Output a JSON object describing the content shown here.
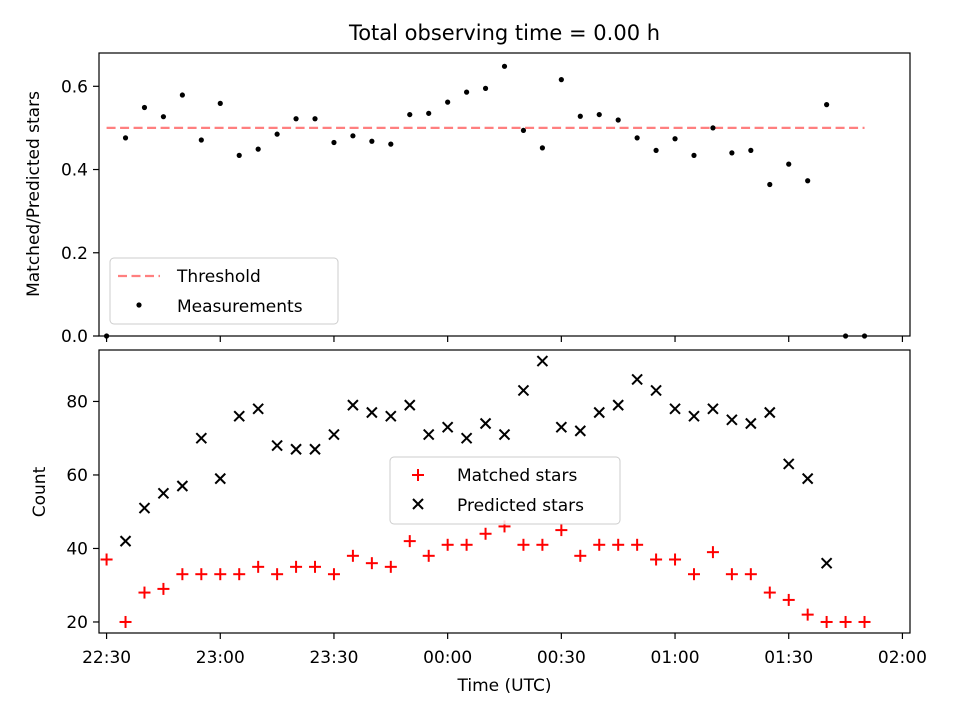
{
  "chart_data": [
    {
      "type": "scatter",
      "title": "Total observing time = 0.00 h",
      "xlabel": "",
      "ylabel": "Matched/Predicted stars",
      "ylim": [
        0,
        0.68
      ],
      "yticks": [
        0.0,
        0.2,
        0.4,
        0.6
      ],
      "ytick_labels": [
        "0.0",
        "0.2",
        "0.4",
        "0.6"
      ],
      "xlim": [
        "22:28",
        "02:02"
      ],
      "threshold": {
        "value": 0.5,
        "x_range": [
          "22:30",
          "01:50"
        ],
        "color": "#ff7f7f"
      },
      "legend": {
        "position": "lower-left",
        "entries": [
          "Threshold",
          "Measurements"
        ]
      },
      "series": [
        {
          "name": "Measurements",
          "marker": "dot",
          "color": "#000000",
          "x": [
            "22:30",
            "22:35",
            "22:40",
            "22:45",
            "22:50",
            "22:55",
            "23:00",
            "23:05",
            "23:10",
            "23:15",
            "23:20",
            "23:25",
            "23:30",
            "23:35",
            "23:40",
            "23:45",
            "23:50",
            "23:55",
            "00:00",
            "00:05",
            "00:10",
            "00:15",
            "00:20",
            "00:25",
            "00:30",
            "00:35",
            "00:40",
            "00:45",
            "00:50",
            "00:55",
            "01:00",
            "01:05",
            "01:10",
            "01:15",
            "01:20",
            "01:25",
            "01:30",
            "01:35",
            "01:40",
            "01:45",
            "01:50"
          ],
          "y": [
            0.0,
            0.476,
            0.549,
            0.527,
            0.579,
            0.471,
            0.559,
            0.434,
            0.449,
            0.485,
            0.522,
            0.522,
            0.465,
            0.481,
            0.468,
            0.461,
            0.532,
            0.535,
            0.562,
            0.586,
            0.595,
            0.648,
            0.494,
            0.452,
            0.616,
            0.528,
            0.532,
            0.519,
            0.476,
            0.446,
            0.474,
            0.434,
            0.5,
            0.44,
            0.446,
            0.364,
            0.413,
            0.373,
            0.556,
            0.0,
            0.0
          ]
        }
      ]
    },
    {
      "type": "scatter",
      "title": "",
      "xlabel": "Time (UTC)",
      "ylabel": "Count",
      "ylim": [
        17,
        94
      ],
      "yticks": [
        20,
        40,
        60,
        80
      ],
      "ytick_labels": [
        "20",
        "40",
        "60",
        "80"
      ],
      "xlim": [
        "22:28",
        "02:02"
      ],
      "xticks": [
        "22:30",
        "23:00",
        "23:30",
        "00:00",
        "00:30",
        "01:00",
        "01:30",
        "02:00"
      ],
      "legend": {
        "position": "center",
        "entries": [
          "Matched stars",
          "Predicted stars"
        ]
      },
      "series": [
        {
          "name": "Matched stars",
          "marker": "plus",
          "color": "#ff0000",
          "x": [
            "22:30",
            "22:35",
            "22:40",
            "22:45",
            "22:50",
            "22:55",
            "23:00",
            "23:05",
            "23:10",
            "23:15",
            "23:20",
            "23:25",
            "23:30",
            "23:35",
            "23:40",
            "23:45",
            "23:50",
            "23:55",
            "00:00",
            "00:05",
            "00:10",
            "00:15",
            "00:20",
            "00:25",
            "00:30",
            "00:35",
            "00:40",
            "00:45",
            "00:50",
            "00:55",
            "01:00",
            "01:05",
            "01:10",
            "01:15",
            "01:20",
            "01:25",
            "01:30",
            "01:35",
            "01:40",
            "01:45",
            "01:50"
          ],
          "y": [
            37,
            20,
            28,
            29,
            33,
            33,
            33,
            33,
            35,
            33,
            35,
            35,
            33,
            38,
            36,
            35,
            42,
            38,
            41,
            41,
            44,
            46,
            41,
            41,
            45,
            38,
            41,
            41,
            41,
            37,
            37,
            33,
            39,
            33,
            33,
            28,
            26,
            22,
            20,
            20,
            20
          ]
        },
        {
          "name": "Predicted stars",
          "marker": "x",
          "color": "#000000",
          "x": [
            "22:35",
            "22:40",
            "22:45",
            "22:50",
            "22:55",
            "23:00",
            "23:05",
            "23:10",
            "23:15",
            "23:20",
            "23:25",
            "23:30",
            "23:35",
            "23:40",
            "23:45",
            "23:50",
            "23:55",
            "00:00",
            "00:05",
            "00:10",
            "00:15",
            "00:20",
            "00:25",
            "00:30",
            "00:35",
            "00:40",
            "00:45",
            "00:50",
            "00:55",
            "01:00",
            "01:05",
            "01:10",
            "01:15",
            "01:20",
            "01:25",
            "01:30",
            "01:35",
            "01:40"
          ],
          "y": [
            42,
            51,
            55,
            57,
            70,
            59,
            76,
            78,
            68,
            67,
            67,
            71,
            79,
            77,
            76,
            79,
            71,
            73,
            70,
            74,
            71,
            83,
            91,
            73,
            72,
            77,
            79,
            86,
            83,
            78,
            76,
            78,
            75,
            74,
            77,
            63,
            59,
            36
          ]
        }
      ]
    }
  ]
}
